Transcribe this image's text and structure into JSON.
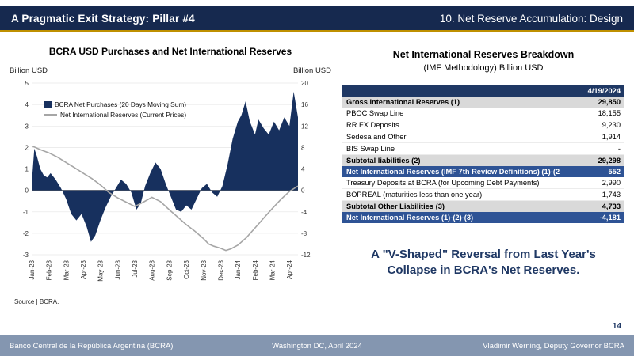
{
  "header": {
    "left_title": "A Pragmatic Exit Strategy: Pillar #4",
    "right_title": "10. Net Reserve Accumulation: Design"
  },
  "chart_data": {
    "type": "combo",
    "title": "BCRA USD Purchases and Net International Reserves",
    "left_axis": {
      "label": "Billion USD",
      "min": -3,
      "max": 5,
      "step": 1
    },
    "right_axis": {
      "label": "Billion USD",
      "min": -12,
      "max": 20,
      "step": 4
    },
    "grid": true,
    "legend_position": "top-left",
    "x_labels": [
      "Jan-23",
      "Feb-23",
      "Mar-23",
      "Apr-23",
      "May-23",
      "Jun-23",
      "Jul-23",
      "Aug-23",
      "Sep-23",
      "Oct-23",
      "Nov-23",
      "Dec-23",
      "Jan-24",
      "Feb-24",
      "Mar-24",
      "Apr-24"
    ],
    "series": [
      {
        "name": "BCRA Net Purchases (20 Days Moving Sum)",
        "type": "area",
        "axis": "left",
        "color": "#17305e",
        "x": [
          0,
          0.15,
          0.3,
          0.5,
          0.7,
          0.9,
          1.1,
          1.4,
          1.7,
          2.0,
          2.3,
          2.6,
          2.9,
          3.2,
          3.45,
          3.7,
          4.0,
          4.3,
          4.6,
          4.9,
          5.2,
          5.5,
          5.8,
          6.1,
          6.35,
          6.6,
          6.9,
          7.2,
          7.5,
          7.8,
          8.1,
          8.4,
          8.7,
          9.0,
          9.3,
          9.6,
          9.9,
          10.2,
          10.5,
          10.8,
          11.1,
          11.4,
          11.7,
          12.0,
          12.2,
          12.45,
          12.7,
          13.0,
          13.2,
          13.5,
          13.8,
          14.1,
          14.4,
          14.7,
          15.0,
          15.25,
          15.5
        ],
        "values": [
          0.3,
          1.95,
          1.6,
          1.0,
          0.7,
          0.6,
          0.8,
          0.5,
          0.1,
          -0.4,
          -1.1,
          -1.4,
          -1.1,
          -1.7,
          -2.4,
          -2.1,
          -1.4,
          -0.8,
          -0.3,
          0.1,
          0.5,
          0.3,
          -0.1,
          -0.9,
          -0.6,
          0.2,
          0.8,
          1.3,
          1.0,
          0.3,
          -0.3,
          -0.9,
          -1.0,
          -0.7,
          -0.9,
          -0.4,
          0.1,
          0.3,
          -0.1,
          -0.3,
          0.2,
          1.2,
          2.4,
          3.2,
          3.5,
          4.15,
          3.2,
          2.6,
          3.3,
          2.9,
          2.6,
          3.2,
          2.8,
          3.4,
          3.0,
          4.6,
          3.4
        ]
      },
      {
        "name": "Net International Reserves (Current Prices)",
        "type": "line",
        "axis": "right",
        "color": "#a6a6a6",
        "x": [
          0,
          0.5,
          1,
          1.5,
          2,
          2.5,
          3,
          3.5,
          4,
          4.5,
          5,
          5.5,
          6,
          6.5,
          7,
          7.5,
          8,
          8.5,
          9,
          9.5,
          10,
          10.3,
          10.6,
          11,
          11.3,
          11.6,
          12,
          12.5,
          13,
          13.5,
          14,
          14.5,
          15,
          15.5
        ],
        "values": [
          8.3,
          7.6,
          7.0,
          6.2,
          5.2,
          4.2,
          3.2,
          2.2,
          1.0,
          -0.4,
          -1.4,
          -2.2,
          -3.0,
          -2.2,
          -1.3,
          -2.1,
          -3.6,
          -5.0,
          -6.4,
          -7.6,
          -9.0,
          -10.0,
          -10.4,
          -10.8,
          -11.2,
          -10.9,
          -10.2,
          -8.8,
          -7.0,
          -5.2,
          -3.4,
          -1.7,
          -0.2,
          0.8
        ]
      }
    ],
    "source": "Source | BCRA."
  },
  "table": {
    "title": "Net International Reserves Breakdown",
    "subtitle": "(IMF Methodology) Billion USD",
    "date_header": "4/19/2024",
    "rows": [
      {
        "label": "Gross International Reserves (1)",
        "value": "29,850",
        "style": "subtotal"
      },
      {
        "label": "PBOC Swap Line",
        "value": "18,155",
        "style": "normal"
      },
      {
        "label": "RR FX Deposits",
        "value": "9,230",
        "style": "normal"
      },
      {
        "label": "Sedesa and Other",
        "value": "1,914",
        "style": "normal"
      },
      {
        "label": "BIS Swap Line",
        "value": "-",
        "style": "normal"
      },
      {
        "label": "Subtotal liabilities (2)",
        "value": "29,298",
        "style": "subtotal"
      },
      {
        "label": "Net International Reserves (IMF 7th Review Definitions) (1)-(2",
        "value": "552",
        "style": "highlight"
      },
      {
        "label": "Treasury Deposits at BCRA (for Upcoming Debt Payments)",
        "value": "2,990",
        "style": "normal"
      },
      {
        "label": "BOPREAL (maturities less than one year)",
        "value": "1,743",
        "style": "normal"
      },
      {
        "label": "Subtotal Other Liabilities (3)",
        "value": "4,733",
        "style": "subtotal"
      },
      {
        "label": "Net International Reserves (1)-(2)-(3)",
        "value": "-4,181",
        "style": "highlight"
      }
    ]
  },
  "callout": "A \"V-Shaped\" Reversal from Last Year's Collapse in BCRA's Net Reserves.",
  "page_number": "14",
  "footer": {
    "left": "Banco Central de la República Argentina (BCRA)",
    "center": "Washington DC, April 2024",
    "right": "Vladimir Werning, Deputy Governor BCRA"
  },
  "colors": {
    "navy_header": "#16294f",
    "gold_accent": "#bf9000",
    "footer_bg": "#8496b0",
    "bar_series": "#17305e",
    "line_series": "#a6a6a6",
    "table_header": "#1f3864",
    "highlight_row": "#2e5395",
    "subtotal_row": "#d9d9d9",
    "callout_text": "#1f3864"
  }
}
